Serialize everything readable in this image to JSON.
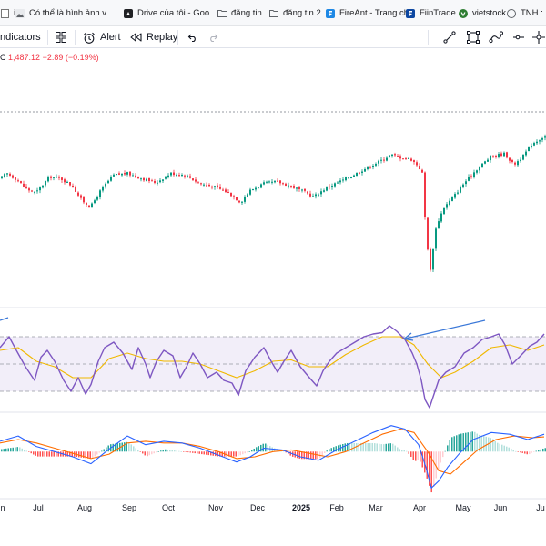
{
  "bookmarks": [
    {
      "label": "i...",
      "icon": "page-icon"
    },
    {
      "label": "Có thể là hình ảnh v...",
      "icon": "image-icon"
    },
    {
      "label": "Drive của tôi - Goo...",
      "icon": "drive-icon"
    },
    {
      "label": "đăng tin",
      "icon": "folder-icon"
    },
    {
      "label": "đăng tin 2",
      "icon": "folder-icon"
    },
    {
      "label": "FireAnt - Trang chủ",
      "icon": "fireant-icon"
    },
    {
      "label": "FiinTrade",
      "icon": "fiintrade-icon"
    },
    {
      "label": "vietstock",
      "icon": "vietstock-icon"
    },
    {
      "label": "TNH : Co",
      "icon": "page-icon"
    }
  ],
  "toolbar": {
    "indicators_label": "ndicators",
    "alert_label": "Alert",
    "replay_label": "Replay",
    "drawing_tools": [
      "trendline-icon",
      "rectangle-icon",
      "path-icon",
      "horizontal-ray-icon",
      "crosshair-icon"
    ]
  },
  "legend": {
    "close_prefix": "C",
    "close_value": "1,487.12",
    "change": "−2.89",
    "change_pct": "(−0.19%)"
  },
  "colors": {
    "up": "#089981",
    "down": "#f23645",
    "rsi": "#7e57c2",
    "rsi_ma": "#f0b800",
    "rsi_band": "#ede7f6",
    "macd": "#2962ff",
    "signal": "#ff6d00",
    "annotation": "#3b78d8"
  },
  "time_axis": {
    "labels": [
      "n",
      "Jul",
      "Aug",
      "Sep",
      "Oct",
      "Nov",
      "Dec",
      "2025",
      "Feb",
      "Mar",
      "Apr",
      "May",
      "Jun",
      "Ju"
    ]
  },
  "chart_data": [
    {
      "type": "candlestick",
      "title": "",
      "close_path": [
        [
          0,
          1250
        ],
        [
          8,
          1262
        ],
        [
          18,
          1250
        ],
        [
          30,
          1228
        ],
        [
          40,
          1220
        ],
        [
          55,
          1255
        ],
        [
          68,
          1250
        ],
        [
          80,
          1235
        ],
        [
          90,
          1205
        ],
        [
          100,
          1190
        ],
        [
          112,
          1228
        ],
        [
          125,
          1258
        ],
        [
          140,
          1262
        ],
        [
          158,
          1250
        ],
        [
          172,
          1242
        ],
        [
          188,
          1262
        ],
        [
          205,
          1258
        ],
        [
          220,
          1240
        ],
        [
          238,
          1232
        ],
        [
          252,
          1220
        ],
        [
          265,
          1200
        ],
        [
          275,
          1225
        ],
        [
          290,
          1240
        ],
        [
          305,
          1244
        ],
        [
          320,
          1235
        ],
        [
          335,
          1222
        ],
        [
          345,
          1212
        ],
        [
          360,
          1232
        ],
        [
          378,
          1248
        ],
        [
          392,
          1262
        ],
        [
          405,
          1275
        ],
        [
          420,
          1290
        ],
        [
          430,
          1302
        ],
        [
          440,
          1296
        ],
        [
          452,
          1292
        ],
        [
          460,
          1278
        ],
        [
          465,
          1260
        ],
        [
          467,
          1180
        ],
        [
          469,
          1130
        ],
        [
          471,
          1092
        ],
        [
          473,
          1045
        ],
        [
          475,
          1082
        ],
        [
          480,
          1150
        ],
        [
          488,
          1188
        ],
        [
          498,
          1210
        ],
        [
          510,
          1240
        ],
        [
          525,
          1272
        ],
        [
          540,
          1298
        ],
        [
          555,
          1304
        ],
        [
          565,
          1280
        ],
        [
          575,
          1298
        ],
        [
          585,
          1325
        ],
        [
          598,
          1340
        ]
      ],
      "highs": [
        1346
      ],
      "lows": [
        1042
      ]
    },
    {
      "type": "line",
      "title": "",
      "ylim": [
        20,
        80
      ],
      "bands": [
        30,
        50,
        70
      ],
      "series": [
        {
          "role": "rsi",
          "points": [
            [
              0,
              62
            ],
            [
              10,
              70
            ],
            [
              18,
              60
            ],
            [
              28,
              48
            ],
            [
              38,
              38
            ],
            [
              45,
              55
            ],
            [
              52,
              60
            ],
            [
              60,
              52
            ],
            [
              70,
              38
            ],
            [
              78,
              30
            ],
            [
              86,
              40
            ],
            [
              94,
              28
            ],
            [
              100,
              35
            ],
            [
              108,
              52
            ],
            [
              115,
              62
            ],
            [
              125,
              66
            ],
            [
              135,
              58
            ],
            [
              145,
              46
            ],
            [
              152,
              62
            ],
            [
              160,
              50
            ],
            [
              165,
              40
            ],
            [
              172,
              52
            ],
            [
              180,
              60
            ],
            [
              190,
              56
            ],
            [
              198,
              40
            ],
            [
              205,
              48
            ],
            [
              212,
              58
            ],
            [
              220,
              50
            ],
            [
              228,
              40
            ],
            [
              238,
              44
            ],
            [
              246,
              38
            ],
            [
              255,
              36
            ],
            [
              262,
              27
            ],
            [
              270,
              45
            ],
            [
              280,
              55
            ],
            [
              290,
              62
            ],
            [
              298,
              52
            ],
            [
              305,
              44
            ],
            [
              312,
              52
            ],
            [
              320,
              60
            ],
            [
              330,
              48
            ],
            [
              340,
              40
            ],
            [
              348,
              34
            ],
            [
              355,
              45
            ],
            [
              362,
              52
            ],
            [
              370,
              58
            ],
            [
              380,
              62
            ],
            [
              390,
              66
            ],
            [
              400,
              70
            ],
            [
              410,
              72
            ],
            [
              420,
              73
            ],
            [
              428,
              78
            ],
            [
              436,
              74
            ],
            [
              445,
              68
            ],
            [
              453,
              58
            ],
            [
              458,
              50
            ],
            [
              463,
              38
            ],
            [
              467,
              24
            ],
            [
              472,
              18
            ],
            [
              477,
              28
            ],
            [
              482,
              38
            ],
            [
              490,
              44
            ],
            [
              500,
              48
            ],
            [
              510,
              58
            ],
            [
              520,
              62
            ],
            [
              530,
              68
            ],
            [
              540,
              70
            ],
            [
              548,
              72
            ],
            [
              555,
              64
            ],
            [
              563,
              50
            ],
            [
              572,
              56
            ],
            [
              582,
              63
            ],
            [
              590,
              66
            ],
            [
              598,
              72
            ]
          ]
        },
        {
          "role": "rsi-ma",
          "points": [
            [
              0,
              60
            ],
            [
              20,
              62
            ],
            [
              40,
              52
            ],
            [
              60,
              48
            ],
            [
              80,
              40
            ],
            [
              100,
              40
            ],
            [
              120,
              54
            ],
            [
              140,
              58
            ],
            [
              160,
              54
            ],
            [
              180,
              52
            ],
            [
              200,
              52
            ],
            [
              220,
              50
            ],
            [
              240,
              45
            ],
            [
              260,
              40
            ],
            [
              280,
              45
            ],
            [
              300,
              52
            ],
            [
              320,
              53
            ],
            [
              340,
              48
            ],
            [
              360,
              48
            ],
            [
              380,
              57
            ],
            [
              400,
              64
            ],
            [
              420,
              70
            ],
            [
              440,
              70
            ],
            [
              455,
              64
            ],
            [
              470,
              50
            ],
            [
              485,
              40
            ],
            [
              500,
              44
            ],
            [
              520,
              52
            ],
            [
              540,
              62
            ],
            [
              560,
              64
            ],
            [
              580,
              60
            ],
            [
              598,
              64
            ]
          ]
        }
      ]
    },
    {
      "type": "line",
      "title": "",
      "series": [
        {
          "role": "macd",
          "points": [
            [
              0,
              12
            ],
            [
              20,
              18
            ],
            [
              40,
              6
            ],
            [
              60,
              0
            ],
            [
              80,
              -6
            ],
            [
              100,
              -14
            ],
            [
              120,
              3
            ],
            [
              140,
              18
            ],
            [
              160,
              8
            ],
            [
              180,
              12
            ],
            [
              200,
              10
            ],
            [
              220,
              4
            ],
            [
              240,
              -4
            ],
            [
              260,
              -12
            ],
            [
              275,
              -6
            ],
            [
              290,
              4
            ],
            [
              310,
              2
            ],
            [
              330,
              -6
            ],
            [
              350,
              -10
            ],
            [
              370,
              2
            ],
            [
              390,
              12
            ],
            [
              410,
              22
            ],
            [
              430,
              30
            ],
            [
              445,
              26
            ],
            [
              460,
              8
            ],
            [
              468,
              -18
            ],
            [
              474,
              -42
            ],
            [
              482,
              -34
            ],
            [
              492,
              -18
            ],
            [
              505,
              -2
            ],
            [
              520,
              14
            ],
            [
              540,
              22
            ],
            [
              560,
              20
            ],
            [
              580,
              14
            ],
            [
              598,
              20
            ]
          ]
        },
        {
          "role": "signal",
          "points": [
            [
              0,
              10
            ],
            [
              20,
              14
            ],
            [
              40,
              10
            ],
            [
              60,
              4
            ],
            [
              80,
              -2
            ],
            [
              100,
              -8
            ],
            [
              120,
              -3
            ],
            [
              140,
              10
            ],
            [
              160,
              12
            ],
            [
              180,
              10
            ],
            [
              200,
              10
            ],
            [
              220,
              6
            ],
            [
              240,
              0
            ],
            [
              260,
              -8
            ],
            [
              280,
              -6
            ],
            [
              300,
              0
            ],
            [
              320,
              2
            ],
            [
              340,
              -2
            ],
            [
              360,
              -6
            ],
            [
              380,
              0
            ],
            [
              400,
              10
            ],
            [
              420,
              20
            ],
            [
              440,
              26
            ],
            [
              455,
              22
            ],
            [
              470,
              0
            ],
            [
              482,
              -22
            ],
            [
              495,
              -26
            ],
            [
              510,
              -12
            ],
            [
              525,
              2
            ],
            [
              545,
              14
            ],
            [
              565,
              18
            ],
            [
              585,
              16
            ],
            [
              598,
              17
            ]
          ]
        }
      ]
    }
  ]
}
